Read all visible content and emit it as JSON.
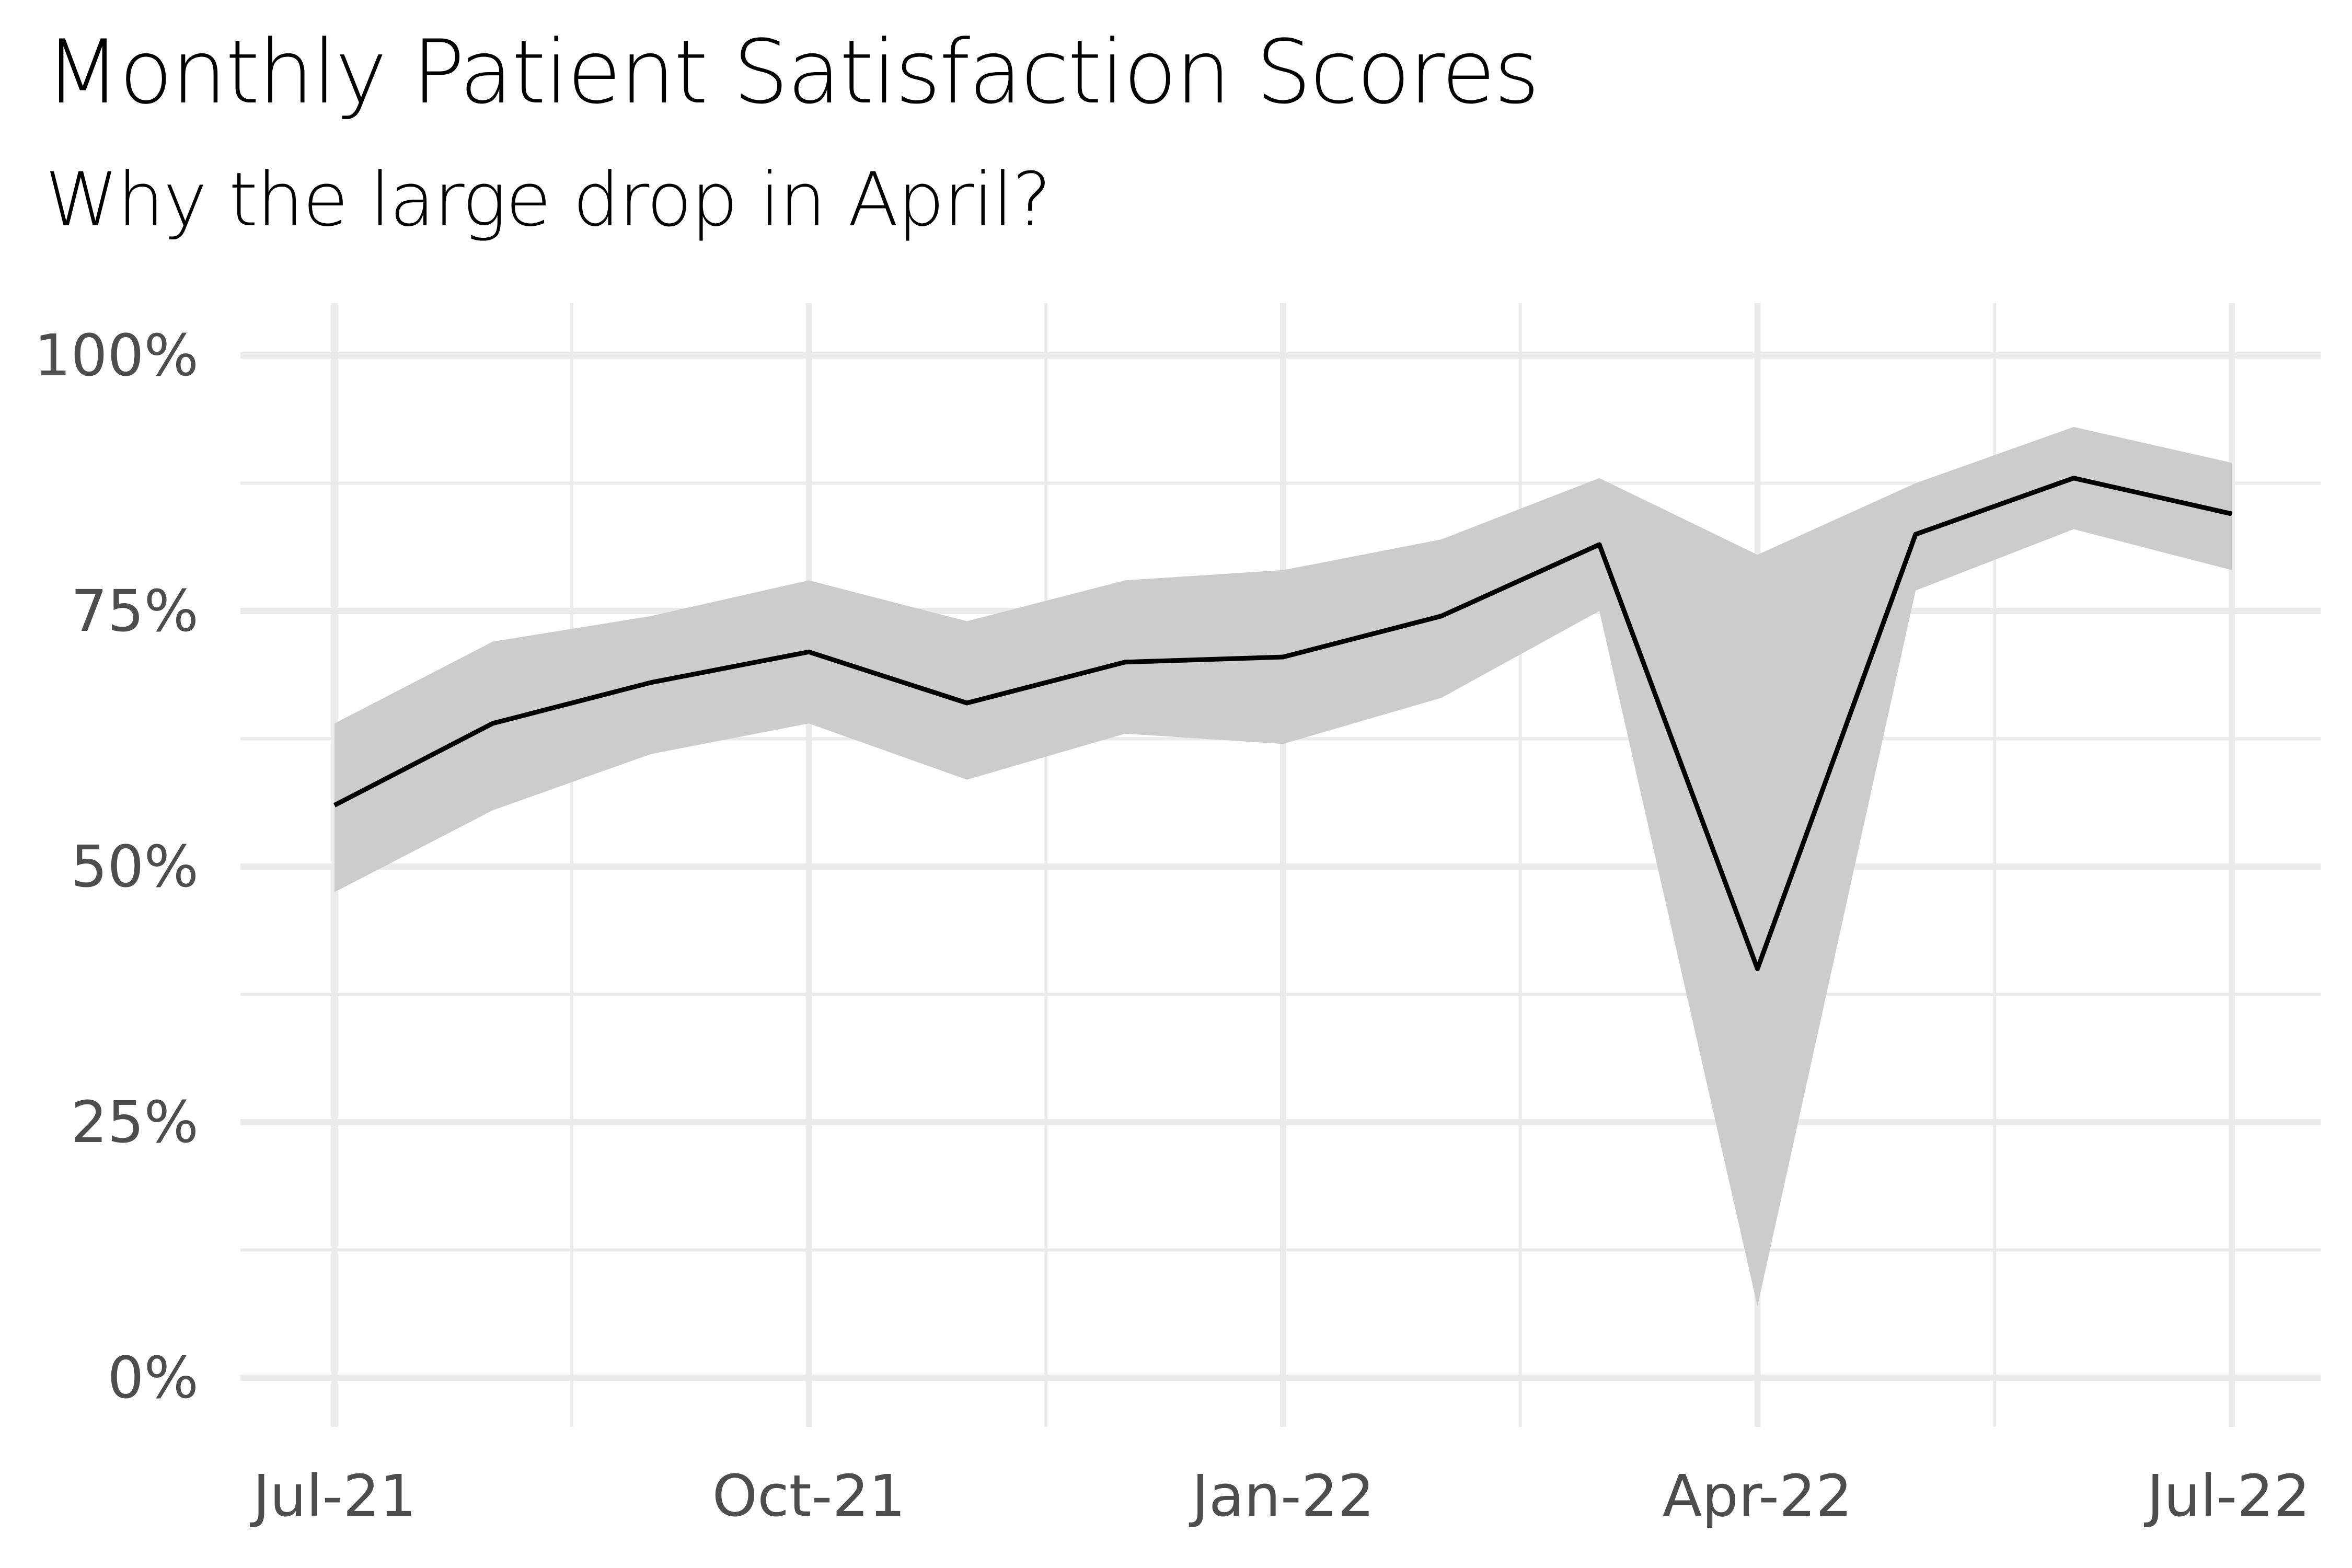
{
  "chart_data": {
    "type": "line",
    "title": "Monthly Patient Satisfaction Scores",
    "subtitle": "Why the large drop in April?",
    "xlabel": "",
    "ylabel": "",
    "x": [
      "2021-07",
      "2021-08",
      "2021-09",
      "2021-10",
      "2021-11",
      "2021-12",
      "2022-01",
      "2022-02",
      "2022-03",
      "2022-04",
      "2022-05",
      "2022-06",
      "2022-07"
    ],
    "x_tick_labels": [
      "Jul-21",
      "Oct-21",
      "Jan-22",
      "Apr-22",
      "Jul-22"
    ],
    "y_tick_labels": [
      "0%",
      "25%",
      "50%",
      "75%",
      "100%"
    ],
    "ylim": [
      0,
      1
    ],
    "series": [
      {
        "values": [
          0.56,
          0.64,
          0.68,
          0.71,
          0.66,
          0.7,
          0.705,
          0.745,
          0.815,
          0.4,
          0.825,
          0.88,
          0.845
        ],
        "lower": [
          0.475,
          0.555,
          0.61,
          0.64,
          0.585,
          0.63,
          0.62,
          0.665,
          0.75,
          0.07,
          0.77,
          0.83,
          0.79
        ],
        "upper": [
          0.64,
          0.72,
          0.745,
          0.78,
          0.74,
          0.78,
          0.79,
          0.82,
          0.88,
          0.805,
          0.875,
          0.93,
          0.895
        ]
      }
    ],
    "grid": true,
    "legend": "none",
    "colors": {
      "line": "#000000",
      "ribbon": "#cccccc",
      "grid": "#ebebeb",
      "text": "#4d4d4d"
    }
  }
}
